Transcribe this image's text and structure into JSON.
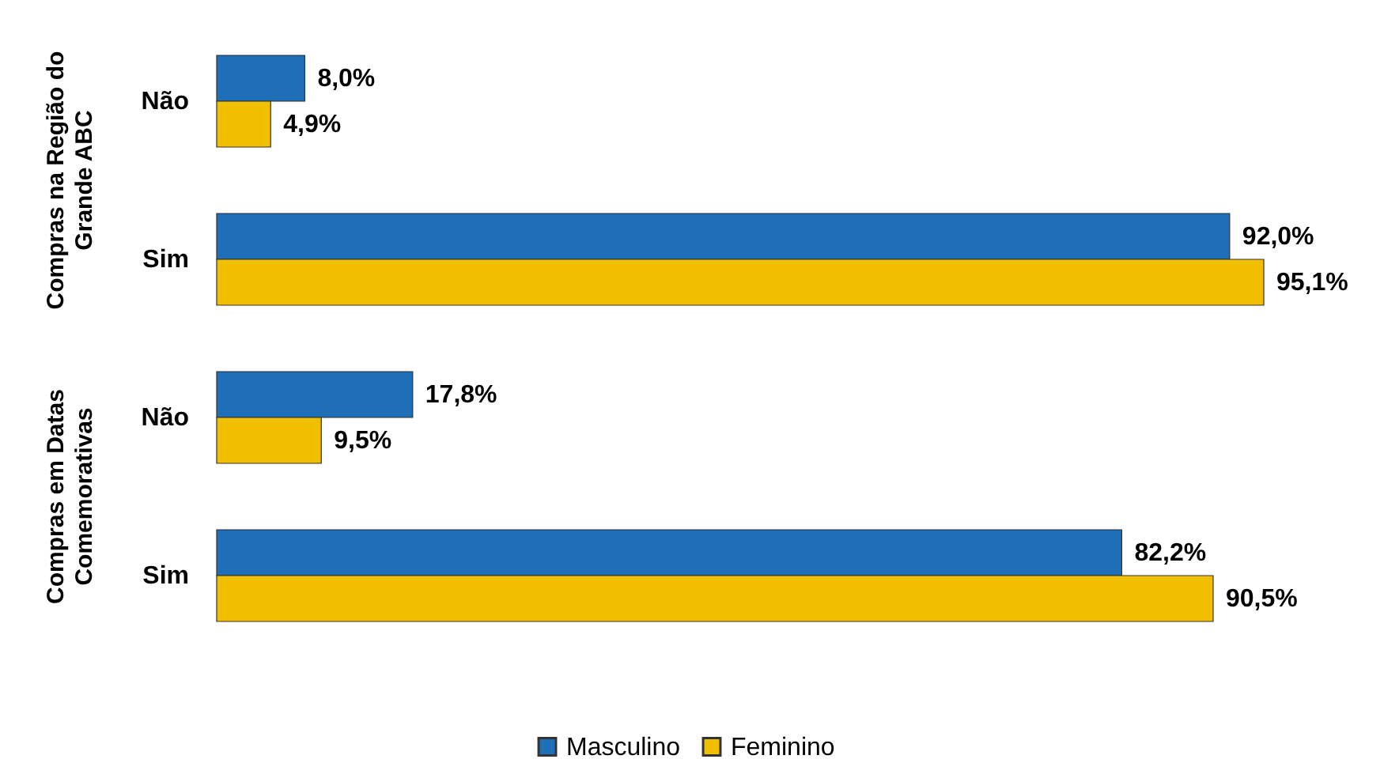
{
  "chart_data": {
    "type": "bar",
    "orientation": "horizontal",
    "categories": [
      "Não",
      "Sim",
      "Não",
      "Sim"
    ],
    "series": [
      {
        "name": "Masculino",
        "color": "#1f6fb8",
        "values": [
          8.0,
          92.0,
          17.8,
          82.2
        ],
        "value_labels": [
          "8,0%",
          "92,0%",
          "17,8%",
          "82,2%"
        ]
      },
      {
        "name": "Feminino",
        "color": "#f0c000",
        "values": [
          4.9,
          95.1,
          9.5,
          90.5
        ],
        "value_labels": [
          "4,9%",
          "95,1%",
          "9,5%",
          "90,5%"
        ]
      }
    ],
    "annotations": [
      "Compras na Região do Grande ABC",
      "Compras em Datas Comemorativas"
    ],
    "legend": "bottom",
    "grid": false
  }
}
